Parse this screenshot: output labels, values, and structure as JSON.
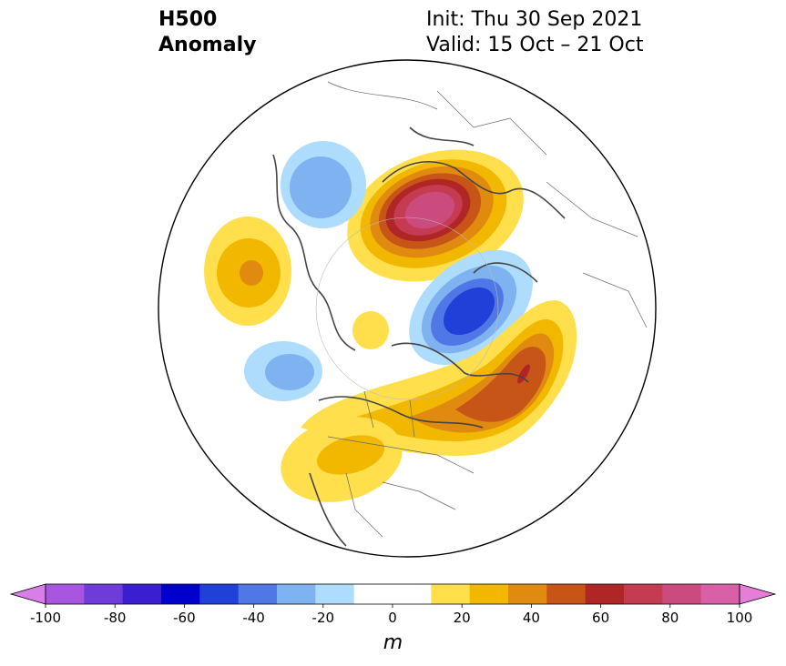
{
  "title": {
    "line1": "H500",
    "line2": "Anomaly",
    "init": "Init: Thu 30 Sep 2021",
    "valid": "Valid: 15 Oct – 21 Oct"
  },
  "colorbar": {
    "units": "m",
    "ticks": [
      "-100",
      "-80",
      "-60",
      "-40",
      "-20",
      "0",
      "20",
      "40",
      "60",
      "80",
      "100"
    ],
    "colors": [
      "#d87ee8",
      "#a855e0",
      "#6e3cd8",
      "#3a1fd0",
      "#0000cc",
      "#2040d8",
      "#4f78e6",
      "#7fb2f0",
      "#aedcfc",
      "#ffffff",
      "#ffffff",
      "#ffe04c",
      "#f2b800",
      "#e08a10",
      "#c85518",
      "#b02626",
      "#c43b52",
      "#cc4b7f",
      "#d860a6",
      "#e57ed6"
    ]
  },
  "map": {
    "projection": "North polar stereographic",
    "anomaly_features": [
      {
        "region": "Scandinavia / NW Russia",
        "sign": "positive",
        "peak_m": 80
      },
      {
        "region": "Greenland / Baffin",
        "sign": "negative",
        "peak_m": -60
      },
      {
        "region": "North Atlantic / Eastern Canada",
        "sign": "positive",
        "peak_m": 60
      },
      {
        "region": "Western North America",
        "sign": "positive",
        "peak_m": 30
      },
      {
        "region": "Central Siberia",
        "sign": "negative",
        "peak_m": -30
      },
      {
        "region": "Eastern Siberia",
        "sign": "positive",
        "peak_m": 40
      },
      {
        "region": "Alaska / Bering",
        "sign": "negative",
        "peak_m": -30
      }
    ]
  }
}
